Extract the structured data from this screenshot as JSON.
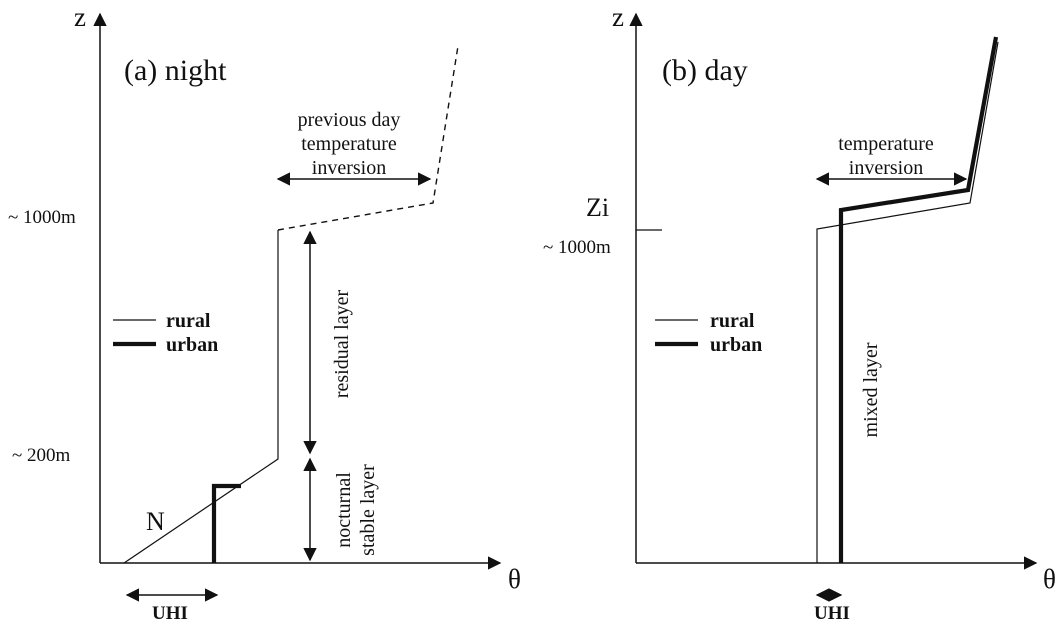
{
  "panel_a": {
    "title": "(a) night",
    "y_axis": "z",
    "x_axis": "θ",
    "tick_1000": "~ 1000m",
    "tick_200": "~ 200m",
    "inversion_line1": "previous day",
    "inversion_line2": "temperature",
    "inversion_line3": "inversion",
    "residual": "residual layer",
    "stable_line1": "nocturnal",
    "stable_line2": "stable layer",
    "n_label": "N",
    "legend_rural": "rural",
    "legend_urban": "urban",
    "uhi": "UHI"
  },
  "panel_b": {
    "title": "(b) day",
    "y_axis": "z",
    "x_axis": "θ",
    "zi": "Zi",
    "tick_1000": "~ 1000m",
    "inversion_line1": "temperature",
    "inversion_line2": "inversion",
    "mixed": "mixed layer",
    "legend_rural": "rural",
    "legend_urban": "urban",
    "uhi": "UHI"
  },
  "colors": {
    "ink": "#111111",
    "background": "#ffffff"
  }
}
